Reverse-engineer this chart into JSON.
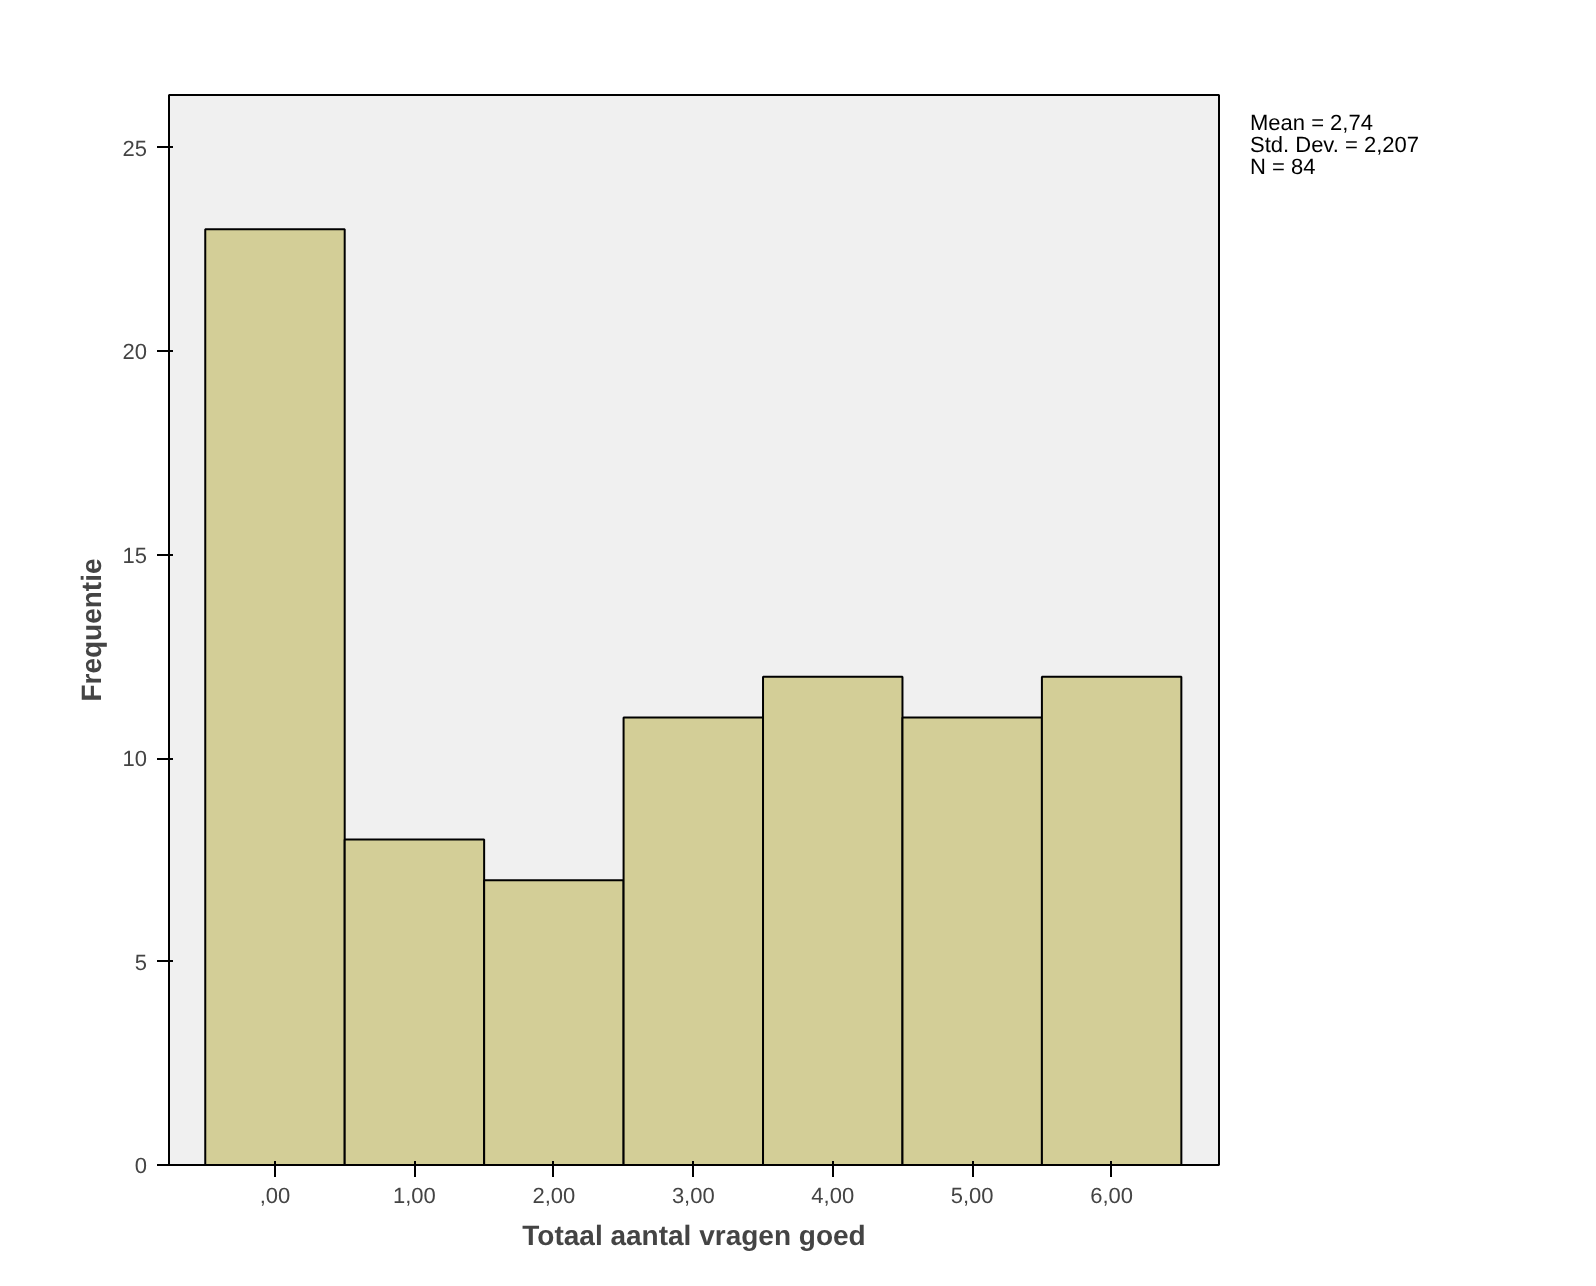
{
  "chart_data": {
    "type": "histogram",
    "xlabel": "Totaal aantal vragen goed",
    "ylabel": "Frequentie",
    "bins": [
      -0.5,
      0.5,
      1.5,
      2.5,
      3.5,
      4.5,
      5.5,
      6.5
    ],
    "values": [
      23,
      8,
      7,
      11,
      12,
      11,
      12
    ],
    "color": "#d3ce97",
    "xlim": [
      -0.76,
      6.77
    ],
    "xticks": [
      {
        "value": 0,
        "label": ",00"
      },
      {
        "value": 1,
        "label": "1,00"
      },
      {
        "value": 2,
        "label": "2,00"
      },
      {
        "value": 3,
        "label": "3,00"
      },
      {
        "value": 4,
        "label": "4,00"
      },
      {
        "value": 5,
        "label": "5,00"
      },
      {
        "value": 6,
        "label": "6,00"
      }
    ],
    "ylim": [
      0,
      26.3
    ],
    "yticks": [
      0,
      5,
      10,
      15,
      20,
      25
    ],
    "grid": false,
    "annotations": [
      "Mean = 2,74",
      "Std. Dev. = 2,207",
      "N = 84"
    ]
  }
}
